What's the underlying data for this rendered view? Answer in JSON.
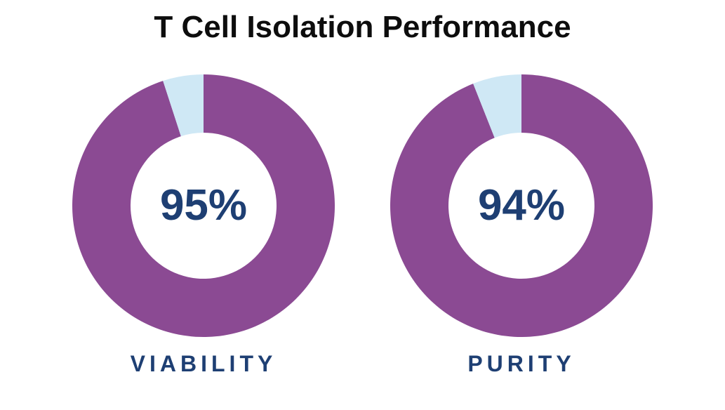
{
  "title": "T Cell Isolation Performance",
  "colors": {
    "primary": "#8b4a93",
    "remainder": "#cfe8f5",
    "text_dark": "#0d0d0d",
    "text_blue": "#1e3f73"
  },
  "chart_data": [
    {
      "type": "pie",
      "style": "donut",
      "label": "VIABILITY",
      "center_text": "95%",
      "slices": [
        {
          "value": 95
        },
        {
          "value": 5
        }
      ]
    },
    {
      "type": "pie",
      "style": "donut",
      "label": "PURITY",
      "center_text": "94%",
      "slices": [
        {
          "value": 94
        },
        {
          "value": 6
        }
      ]
    }
  ]
}
